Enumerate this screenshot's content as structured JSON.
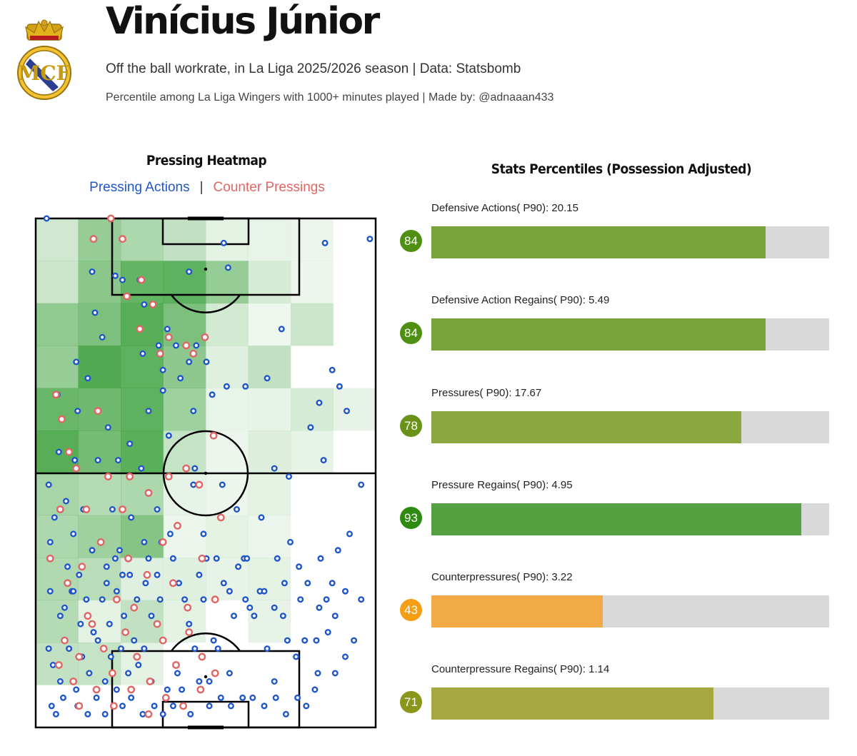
{
  "header": {
    "title": "Vinícius Júnior",
    "subtitle": "Off the ball workrate, in La Liga 2025/2026 season | Data: Statsbomb",
    "note": "Percentile among La Liga Wingers with 1000+ minutes played | Made by: @adnaaan433"
  },
  "crest": {
    "icon": "real-madrid-crest-icon",
    "letters": "MCF"
  },
  "colors": {
    "pressing": "#1f56c8",
    "counter": "#e06666",
    "heat": "#2e9a2e",
    "bar_grey": "#d9d9d9"
  },
  "chart_data": [
    {
      "type": "heatmap",
      "title": "Pressing Heatmap",
      "legend": {
        "pressing_label": "Pressing Actions",
        "counter_label": "Counter Pressings",
        "separator": "|"
      },
      "zones": {
        "columns": 8,
        "rows": 11,
        "intensity": [
          [
            0.22,
            0.55,
            0.42,
            0.3,
            0.1,
            0.07,
            0.06,
            0.0
          ],
          [
            0.25,
            0.62,
            0.85,
            0.88,
            0.55,
            0.18,
            0.05,
            0.0
          ],
          [
            0.58,
            0.7,
            0.92,
            0.7,
            0.2,
            0.04,
            0.25,
            0.0
          ],
          [
            0.55,
            0.95,
            0.88,
            0.6,
            0.12,
            0.3,
            0.0,
            0.0
          ],
          [
            0.82,
            0.78,
            0.88,
            0.5,
            0.07,
            0.08,
            0.18,
            0.08
          ],
          [
            0.92,
            0.75,
            0.9,
            0.28,
            0.05,
            0.14,
            0.08,
            0.0
          ],
          [
            0.45,
            0.38,
            0.42,
            0.08,
            0.05,
            0.1,
            0.0,
            0.0
          ],
          [
            0.42,
            0.5,
            0.65,
            0.05,
            0.1,
            0.06,
            0.0,
            0.0
          ],
          [
            0.4,
            0.35,
            0.12,
            0.12,
            0.08,
            0.1,
            0.0,
            0.0
          ],
          [
            0.38,
            0.1,
            0.3,
            0.1,
            0.0,
            0.08,
            0.0,
            0.0
          ],
          [
            0.3,
            0.28,
            0.1,
            0.0,
            0.0,
            0.0,
            0.0,
            0.0
          ]
        ]
      },
      "points": {
        "pressing_actions": [
          [
            15,
            123
          ],
          [
            78,
            110
          ],
          [
            92,
            94
          ],
          [
            110,
            109
          ],
          [
            120,
            108
          ],
          [
            144,
            96
          ],
          [
            144,
            108
          ],
          [
            150,
            102
          ],
          [
            212,
            110
          ],
          [
            260,
            117
          ],
          [
            266,
            111
          ],
          [
            400,
            117
          ],
          [
            462,
            118
          ],
          [
            56,
            88
          ],
          [
            72,
            84
          ],
          [
            82,
            100
          ],
          [
            148,
            90
          ],
          [
            170,
            92
          ],
          [
            176,
            81
          ],
          [
            176,
            86
          ],
          [
            182,
            96
          ],
          [
            194,
            92
          ],
          [
            200,
            84
          ],
          [
            212,
            88
          ],
          [
            218,
            76
          ],
          [
            222,
            92
          ],
          [
            236,
            88
          ],
          [
            244,
            80
          ],
          [
            264,
            82
          ],
          [
            290,
            82
          ],
          [
            320,
            84
          ],
          [
            340,
            96
          ],
          [
            392,
            78
          ],
          [
            410,
            86
          ],
          [
            420,
            82
          ],
          [
            30,
            80
          ],
          [
            54,
            64
          ],
          [
            58,
            76
          ],
          [
            86,
            64
          ],
          [
            100,
            72
          ],
          [
            114,
            64
          ],
          [
            130,
            68
          ],
          [
            146,
            62
          ],
          [
            156,
            76
          ],
          [
            168,
            52
          ],
          [
            184,
            70
          ],
          [
            220,
            62
          ],
          [
            232,
            46
          ],
          [
            258,
            58
          ],
          [
            312,
            50
          ],
          [
            330,
            62
          ],
          [
            350,
            60
          ],
          [
            380,
            72
          ],
          [
            398,
            64
          ],
          [
            430,
            76
          ],
          [
            450,
            58
          ],
          [
            18,
            58
          ],
          [
            20,
            44
          ],
          [
            26,
            50
          ],
          [
            32,
            66
          ],
          [
            42,
            54
          ],
          [
            52,
            46
          ],
          [
            66,
            52
          ],
          [
            78,
            42
          ],
          [
            98,
            38
          ],
          [
            106,
            52
          ],
          [
            116,
            42
          ],
          [
            132,
            50
          ],
          [
            150,
            44
          ],
          [
            174,
            44
          ],
          [
            186,
            46
          ],
          [
            218,
            58
          ],
          [
            236,
            40
          ],
          [
            278,
            52
          ],
          [
            288,
            40
          ],
          [
            334,
            40
          ],
          [
            352,
            44
          ],
          [
            376,
            34
          ],
          [
            394,
            40
          ],
          [
            410,
            34
          ],
          [
            418,
            42
          ],
          [
            434,
            46
          ],
          [
            20,
            32
          ],
          [
            34,
            26
          ],
          [
            44,
            38
          ],
          [
            50,
            32
          ],
          [
            62,
            24
          ],
          [
            70,
            30
          ],
          [
            80,
            22
          ],
          [
            92,
            30
          ],
          [
            102,
            24
          ],
          [
            112,
            32
          ],
          [
            122,
            26
          ],
          [
            130,
            36
          ],
          [
            140,
            30
          ],
          [
            152,
            34
          ],
          [
            160,
            26
          ],
          [
            172,
            30
          ],
          [
            198,
            34
          ],
          [
            212,
            24
          ],
          [
            232,
            30
          ],
          [
            246,
            20
          ],
          [
            260,
            34
          ],
          [
            274,
            26
          ],
          [
            292,
            40
          ],
          [
            310,
            32
          ],
          [
            342,
            26
          ],
          [
            366,
            30
          ],
          [
            388,
            20
          ],
          [
            402,
            30
          ],
          [
            18,
            18
          ],
          [
            24,
            14
          ],
          [
            34,
            10
          ],
          [
            46,
            18
          ],
          [
            56,
            8
          ],
          [
            64,
            16
          ],
          [
            74,
            12
          ],
          [
            86,
            20
          ],
          [
            96,
            10
          ],
          [
            104,
            16
          ],
          [
            118,
            18
          ],
          [
            128,
            12
          ],
          [
            136,
            20
          ],
          [
            142,
            14
          ],
          [
            150,
            18
          ],
          [
            160,
            10
          ],
          [
            182,
            8
          ],
          [
            196,
            12
          ],
          [
            220,
            18
          ],
          [
            240,
            4
          ],
          [
            252,
            18
          ],
          [
            268,
            12
          ],
          [
            290,
            30
          ],
          [
            302,
            26
          ],
          [
            320,
            18
          ],
          [
            330,
            10
          ],
          [
            348,
            20
          ],
          [
            360,
            16
          ],
          [
            372,
            20
          ],
          [
            390,
            12
          ],
          [
            404,
            22
          ],
          [
            414,
            12
          ],
          [
            428,
            16
          ],
          [
            22,
            4
          ],
          [
            28,
            2
          ],
          [
            38,
            6
          ],
          [
            58,
            4
          ],
          [
            72,
            2
          ],
          [
            84,
            6
          ],
          [
            96,
            2
          ],
          [
            112,
            8
          ],
          [
            120,
            4
          ],
          [
            132,
            6
          ],
          [
            148,
            2
          ],
          [
            164,
            4
          ],
          [
            176,
            2
          ],
          [
            190,
            4
          ],
          [
            202,
            8
          ],
          [
            214,
            2
          ],
          [
            226,
            10
          ],
          [
            240,
            10
          ],
          [
            256,
            6
          ],
          [
            270,
            4
          ],
          [
            286,
            6
          ],
          [
            300,
            6
          ],
          [
            316,
            4
          ],
          [
            332,
            6
          ],
          [
            346,
            2
          ],
          [
            362,
            6
          ],
          [
            374,
            4
          ],
          [
            386,
            8
          ],
          [
            40,
            28
          ],
          [
            52,
            32
          ],
          [
            60,
            36
          ],
          [
            98,
            34
          ],
          [
            110,
            40
          ],
          [
            120,
            36
          ],
          [
            156,
            40
          ],
          [
            168,
            36
          ],
          [
            190,
            40
          ],
          [
            206,
            30
          ],
          [
            226,
            36
          ],
          [
            250,
            40
          ],
          [
            268,
            32
          ],
          [
            280,
            38
          ],
          [
            296,
            28
          ],
          [
            316,
            32
          ],
          [
            330,
            28
          ],
          [
            344,
            34
          ],
          [
            364,
            38
          ],
          [
            392,
            28
          ],
          [
            414,
            26
          ],
          [
            428,
            32
          ],
          [
            440,
            20
          ],
          [
            450,
            30
          ]
        ],
        "counter_pressings": [
          [
            80,
            118
          ],
          [
            104,
            123
          ],
          [
            120,
            118
          ],
          [
            126,
            104
          ],
          [
            146,
            108
          ],
          [
            162,
            102
          ],
          [
            144,
            96
          ],
          [
            172,
            90
          ],
          [
            184,
            94
          ],
          [
            208,
            92
          ],
          [
            218,
            90
          ],
          [
            234,
            94
          ],
          [
            28,
            80
          ],
          [
            36,
            74
          ],
          [
            46,
            66
          ],
          [
            56,
            62
          ],
          [
            70,
            52
          ],
          [
            86,
            76
          ],
          [
            100,
            60
          ],
          [
            120,
            52
          ],
          [
            130,
            60
          ],
          [
            156,
            56
          ],
          [
            184,
            60
          ],
          [
            196,
            48
          ],
          [
            208,
            62
          ],
          [
            226,
            58
          ],
          [
            246,
            70
          ],
          [
            256,
            50
          ],
          [
            20,
            40
          ],
          [
            34,
            52
          ],
          [
            44,
            34
          ],
          [
            64,
            38
          ],
          [
            78,
            24
          ],
          [
            90,
            44
          ],
          [
            112,
            30
          ],
          [
            128,
            40
          ],
          [
            136,
            28
          ],
          [
            154,
            36
          ],
          [
            168,
            24
          ],
          [
            176,
            44
          ],
          [
            190,
            34
          ],
          [
            210,
            28
          ],
          [
            230,
            40
          ],
          [
            248,
            30
          ],
          [
            32,
            14
          ],
          [
            40,
            20
          ],
          [
            52,
            10
          ],
          [
            60,
            16
          ],
          [
            72,
            26
          ],
          [
            94,
            18
          ],
          [
            106,
            12
          ],
          [
            124,
            22
          ],
          [
            140,
            16
          ],
          [
            158,
            10
          ],
          [
            176,
            20
          ],
          [
            194,
            14
          ],
          [
            212,
            22
          ],
          [
            230,
            16
          ],
          [
            248,
            12
          ],
          [
            60,
            4
          ],
          [
            84,
            8
          ],
          [
            108,
            4
          ],
          [
            132,
            8
          ],
          [
            156,
            2
          ],
          [
            180,
            6
          ],
          [
            204,
            4
          ],
          [
            228,
            8
          ]
        ]
      }
    },
    {
      "type": "bar",
      "title": "Stats Percentiles (Possession Adjusted)",
      "xlim": [
        0,
        100
      ],
      "series": [
        {
          "label": "Defensive Actions( P90): 20.15",
          "percentile": 84,
          "percentile_text": "84",
          "color": "#76a33a",
          "badge_color": "#4f8f12"
        },
        {
          "label": "Defensive Action Regains( P90): 5.49",
          "percentile": 84,
          "percentile_text": "84",
          "color": "#76a33a",
          "badge_color": "#4f8f12"
        },
        {
          "label": "Pressures( P90): 17.67",
          "percentile": 78,
          "percentile_text": "78",
          "color": "#8ba73f",
          "badge_color": "#6b9218"
        },
        {
          "label": "Pressure Regains( P90): 4.95",
          "percentile": 93,
          "percentile_text": "93",
          "color": "#55a041",
          "badge_color": "#2f8a12"
        },
        {
          "label": "Counterpressures( P90): 3.22",
          "percentile": 43,
          "percentile_text": "43",
          "color": "#f2aa46",
          "badge_color": "#f59d14"
        },
        {
          "label": "Counterpressure Regains( P90): 1.14",
          "percentile": 71,
          "percentile_text": "71",
          "color": "#a6a842",
          "badge_color": "#8a961c"
        }
      ]
    }
  ]
}
